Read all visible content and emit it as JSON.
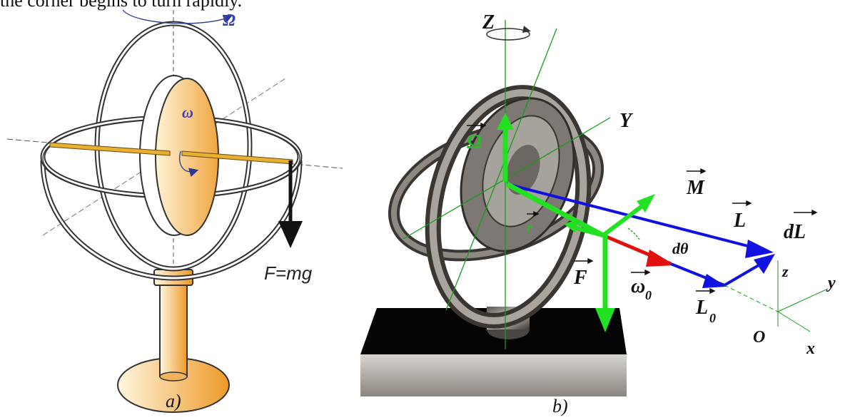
{
  "top_text": "the corner begins to turn rapidly.",
  "panel_a": {
    "caption": "a)",
    "omega_big": "Ω",
    "omega_small": "ω",
    "force": "F=mg"
  },
  "panel_b": {
    "caption": "b)",
    "labels": {
      "Z": "Z",
      "Y": "Y",
      "Omega": "Ω",
      "M": "M",
      "L": "L",
      "dL": "dL",
      "r": "r",
      "F": "F",
      "omega0_base": "ω",
      "omega0_sub": "0",
      "dtheta": "dθ",
      "L0_base": "L",
      "L0_sub": "0",
      "z": "z",
      "y": "y",
      "x": "x",
      "O": "O"
    }
  },
  "colors": {
    "orange": "#f1b84f",
    "orange_dark": "#e08a1a",
    "blue_label": "#3b3fb0",
    "green": "#22e022",
    "blue_vec": "#1010e0",
    "red_vec": "#e01010"
  }
}
